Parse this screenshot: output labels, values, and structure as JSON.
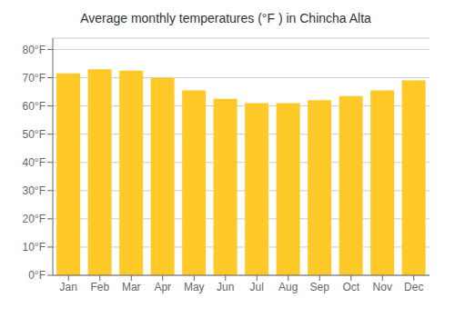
{
  "chart_data": {
    "type": "bar",
    "title": "Average monthly temperatures (°F ) in Chincha Alta",
    "categories": [
      "Jan",
      "Feb",
      "Mar",
      "Apr",
      "May",
      "Jun",
      "Jul",
      "Aug",
      "Sep",
      "Oct",
      "Nov",
      "Dec"
    ],
    "values": [
      71.5,
      73.0,
      72.5,
      70.0,
      65.5,
      62.5,
      61.0,
      61.0,
      62.0,
      63.5,
      65.5,
      69.0
    ],
    "color": "#FFCA28",
    "ylim": [
      0,
      84
    ],
    "yticks": [
      {
        "value": 0,
        "label": "0°F"
      },
      {
        "value": 10,
        "label": "10°F"
      },
      {
        "value": 20,
        "label": "20°F"
      },
      {
        "value": 30,
        "label": "30°F"
      },
      {
        "value": 40,
        "label": "40°F"
      },
      {
        "value": 50,
        "label": "50°F"
      },
      {
        "value": 60,
        "label": "60°F"
      },
      {
        "value": 70,
        "label": "70°F"
      },
      {
        "value": 80,
        "label": "80°F"
      }
    ],
    "grid": true
  }
}
